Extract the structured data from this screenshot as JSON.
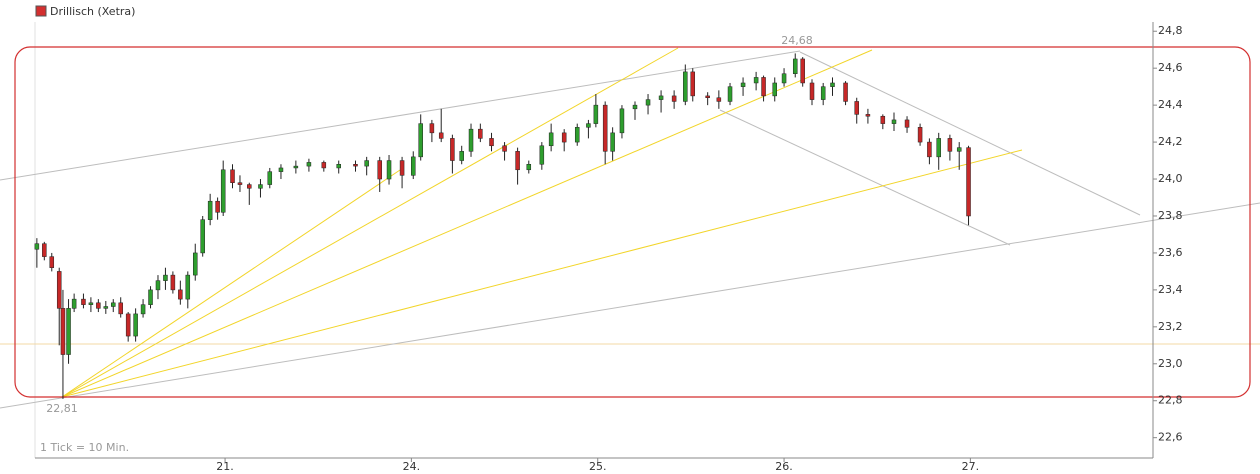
{
  "chart_data": {
    "type": "candlestick",
    "legend": "Drillisch (Xetra)",
    "legend_color": "#d32f2f",
    "annotations": [
      "24,68",
      "22,81",
      "1 Tick = 10 Min."
    ],
    "up_color": "#2e9e2e",
    "down_color": "#c62828",
    "xlim": [
      -1.02,
      4.98
    ],
    "xticks": [
      {
        "value": 0,
        "label": "21."
      },
      {
        "value": 1,
        "label": "24."
      },
      {
        "value": 2,
        "label": "25."
      },
      {
        "value": 3,
        "label": "26."
      },
      {
        "value": 4,
        "label": "27."
      }
    ],
    "ylim": [
      22.49,
      24.85
    ],
    "yticks": [
      {
        "value": 22.6,
        "label": "22,6"
      },
      {
        "value": 22.8,
        "label": "22,8"
      },
      {
        "value": 23,
        "label": "23,0"
      },
      {
        "value": 23.2,
        "label": "23,2"
      },
      {
        "value": 23.4,
        "label": "23,4"
      },
      {
        "value": 23.6,
        "label": "23,6"
      },
      {
        "value": 23.8,
        "label": "23,8"
      },
      {
        "value": 24,
        "label": "24,0"
      },
      {
        "value": 24.2,
        "label": "24,2"
      },
      {
        "value": 24.4,
        "label": "24,4"
      },
      {
        "value": 24.6,
        "label": "24,6"
      },
      {
        "value": 24.8,
        "label": "24,8"
      }
    ],
    "x": [
      -1.01,
      -0.97,
      -0.93,
      -0.89,
      -0.87,
      -0.84,
      -0.81,
      -0.76,
      -0.72,
      -0.68,
      -0.64,
      -0.6,
      -0.56,
      -0.52,
      -0.48,
      -0.44,
      -0.4,
      -0.36,
      -0.32,
      -0.28,
      -0.24,
      -0.2,
      -0.16,
      -0.12,
      -0.08,
      -0.04,
      -0.01,
      0.04,
      0.08,
      0.13,
      0.19,
      0.24,
      0.3,
      0.38,
      0.45,
      0.53,
      0.61,
      0.7,
      0.76,
      0.83,
      0.88,
      0.95,
      1.01,
      1.05,
      1.11,
      1.16,
      1.22,
      1.27,
      1.32,
      1.37,
      1.43,
      1.5,
      1.57,
      1.63,
      1.7,
      1.75,
      1.82,
      1.89,
      1.95,
      1.99,
      2.04,
      2.08,
      2.13,
      2.2,
      2.27,
      2.34,
      2.41,
      2.47,
      2.51,
      2.59,
      2.65,
      2.71,
      2.78,
      2.85,
      2.89,
      2.95,
      3.0,
      3.06,
      3.1,
      3.15,
      3.21,
      3.26,
      3.33,
      3.39,
      3.45,
      3.53,
      3.59,
      3.66,
      3.73,
      3.78,
      3.83,
      3.89,
      3.94,
      3.99
    ],
    "open": [
      23.62,
      23.65,
      23.58,
      23.5,
      23.3,
      23.05,
      23.3,
      23.35,
      23.32,
      23.33,
      23.3,
      23.31,
      23.33,
      23.27,
      23.15,
      23.27,
      23.32,
      23.4,
      23.45,
      23.48,
      23.4,
      23.35,
      23.48,
      23.6,
      23.78,
      23.88,
      23.82,
      24.05,
      23.98,
      23.97,
      23.95,
      23.97,
      24.04,
      24.06,
      24.07,
      24.09,
      24.06,
      24.08,
      24.07,
      24.1,
      24.0,
      24.1,
      24.02,
      24.12,
      24.3,
      24.25,
      24.22,
      24.1,
      24.15,
      24.27,
      24.22,
      24.18,
      24.15,
      24.05,
      24.08,
      24.18,
      24.25,
      24.2,
      24.28,
      24.3,
      24.4,
      24.15,
      24.25,
      24.38,
      24.4,
      24.43,
      24.45,
      24.42,
      24.58,
      24.45,
      24.44,
      24.42,
      24.5,
      24.52,
      24.55,
      24.45,
      24.52,
      24.57,
      24.65,
      24.52,
      24.43,
      24.5,
      24.52,
      24.42,
      24.35,
      24.34,
      24.3,
      24.32,
      24.28,
      24.2,
      24.12,
      24.22,
      24.15,
      24.17
    ],
    "high": [
      23.68,
      23.66,
      23.6,
      23.52,
      23.4,
      23.35,
      23.38,
      23.38,
      23.36,
      23.35,
      23.34,
      23.35,
      23.36,
      23.28,
      23.3,
      23.35,
      23.42,
      23.48,
      23.52,
      23.5,
      23.45,
      23.5,
      23.65,
      23.8,
      23.92,
      23.9,
      24.1,
      24.08,
      24.02,
      23.98,
      24.0,
      24.06,
      24.08,
      24.1,
      24.11,
      24.1,
      24.1,
      24.1,
      24.12,
      24.12,
      24.13,
      24.12,
      24.15,
      24.35,
      24.32,
      24.38,
      24.24,
      24.18,
      24.3,
      24.3,
      24.25,
      24.2,
      24.17,
      24.1,
      24.2,
      24.3,
      24.27,
      24.3,
      24.32,
      24.46,
      24.42,
      24.28,
      24.4,
      24.42,
      24.46,
      24.48,
      24.48,
      24.62,
      24.6,
      24.47,
      24.48,
      24.52,
      24.55,
      24.58,
      24.56,
      24.55,
      24.6,
      24.68,
      24.66,
      24.54,
      24.52,
      24.55,
      24.53,
      24.44,
      24.38,
      24.35,
      24.36,
      24.34,
      24.3,
      24.22,
      24.25,
      24.24,
      24.2,
      24.18
    ],
    "low": [
      23.52,
      23.56,
      23.5,
      23.1,
      22.81,
      23.0,
      23.28,
      23.3,
      23.28,
      23.28,
      23.27,
      23.28,
      23.25,
      23.12,
      23.12,
      23.25,
      23.3,
      23.35,
      23.4,
      23.38,
      23.32,
      23.3,
      23.45,
      23.58,
      23.75,
      23.78,
      23.8,
      23.95,
      23.93,
      23.86,
      23.9,
      23.95,
      24.0,
      24.03,
      24.04,
      24.04,
      24.03,
      24.04,
      24.02,
      23.93,
      23.97,
      23.95,
      24.0,
      24.1,
      24.2,
      24.2,
      24.03,
      24.08,
      24.12,
      24.2,
      24.15,
      24.1,
      23.97,
      24.03,
      24.05,
      24.15,
      24.15,
      24.18,
      24.22,
      24.28,
      24.08,
      24.1,
      24.22,
      24.32,
      24.35,
      24.36,
      24.38,
      24.4,
      24.42,
      24.4,
      24.38,
      24.4,
      24.45,
      24.48,
      24.42,
      24.42,
      24.5,
      24.55,
      24.5,
      24.4,
      24.4,
      24.45,
      24.4,
      24.3,
      24.3,
      24.27,
      24.26,
      24.25,
      24.18,
      24.08,
      24.05,
      24.1,
      24.05,
      23.75
    ],
    "close": [
      23.65,
      23.58,
      23.52,
      23.3,
      23.05,
      23.3,
      23.35,
      23.32,
      23.33,
      23.3,
      23.31,
      23.33,
      23.27,
      23.15,
      23.27,
      23.32,
      23.4,
      23.45,
      23.48,
      23.4,
      23.35,
      23.48,
      23.6,
      23.78,
      23.88,
      23.82,
      24.05,
      23.98,
      23.97,
      23.95,
      23.97,
      24.04,
      24.06,
      24.07,
      24.09,
      24.06,
      24.08,
      24.07,
      24.1,
      24.0,
      24.1,
      24.02,
      24.12,
      24.3,
      24.25,
      24.22,
      24.1,
      24.15,
      24.27,
      24.22,
      24.18,
      24.15,
      24.05,
      24.08,
      24.18,
      24.25,
      24.2,
      24.28,
      24.3,
      24.4,
      24.15,
      24.25,
      24.38,
      24.4,
      24.43,
      24.45,
      24.42,
      24.58,
      24.45,
      24.44,
      24.42,
      24.5,
      24.52,
      24.55,
      24.45,
      24.52,
      24.57,
      24.65,
      24.52,
      24.43,
      24.5,
      24.52,
      24.42,
      24.35,
      24.34,
      24.3,
      24.32,
      24.28,
      24.2,
      24.12,
      24.22,
      24.15,
      24.17,
      23.8
    ]
  }
}
